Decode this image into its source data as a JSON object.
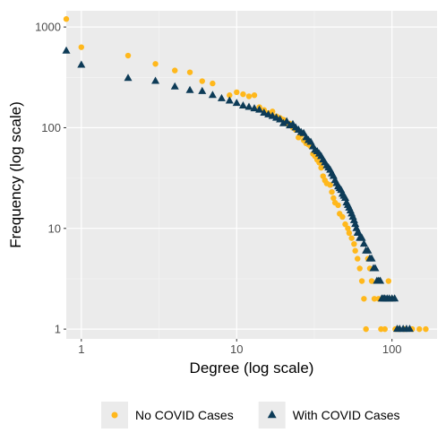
{
  "chart_data": {
    "type": "scatter",
    "xscale": "log",
    "yscale": "log",
    "xlim": [
      0.8,
      195
    ],
    "ylim": [
      0.8,
      1450
    ],
    "xlabel": "Degree (log scale)",
    "ylabel": "Frequency (log scale)",
    "xticks": [
      {
        "value": 1,
        "label": "1"
      },
      {
        "value": 10,
        "label": "10"
      },
      {
        "value": 100,
        "label": "100"
      }
    ],
    "yticks": [
      {
        "value": 1,
        "label": "1"
      },
      {
        "value": 10,
        "label": "10"
      },
      {
        "value": 100,
        "label": "100"
      },
      {
        "value": 1000,
        "label": "1000"
      }
    ],
    "grid": true,
    "background": "#ebebeb",
    "legend_position": "bottom",
    "series": [
      {
        "name": "No COVID Cases",
        "marker": "circle",
        "color": "#ffb81c",
        "points": [
          [
            0.8,
            1200
          ],
          [
            1,
            630
          ],
          [
            2,
            520
          ],
          [
            3,
            430
          ],
          [
            4,
            370
          ],
          [
            5,
            355
          ],
          [
            6,
            290
          ],
          [
            7,
            275
          ],
          [
            9,
            210
          ],
          [
            10,
            225
          ],
          [
            11,
            215
          ],
          [
            12,
            205
          ],
          [
            13,
            210
          ],
          [
            14,
            160
          ],
          [
            15,
            150
          ],
          [
            16,
            140
          ],
          [
            17,
            145
          ],
          [
            18,
            130
          ],
          [
            19,
            125
          ],
          [
            20,
            120
          ],
          [
            21,
            110
          ],
          [
            22,
            110
          ],
          [
            23,
            100
          ],
          [
            24,
            95
          ],
          [
            25,
            80
          ],
          [
            26,
            85
          ],
          [
            27,
            75
          ],
          [
            28,
            70
          ],
          [
            29,
            68
          ],
          [
            30,
            65
          ],
          [
            31,
            55
          ],
          [
            32,
            52
          ],
          [
            33,
            48
          ],
          [
            34,
            45
          ],
          [
            35,
            40
          ],
          [
            36,
            33
          ],
          [
            37,
            30
          ],
          [
            38,
            28
          ],
          [
            40,
            27
          ],
          [
            41,
            23
          ],
          [
            42,
            20
          ],
          [
            43,
            18
          ],
          [
            45,
            17
          ],
          [
            46,
            14
          ],
          [
            48,
            13
          ],
          [
            50,
            11
          ],
          [
            52,
            10
          ],
          [
            53,
            9
          ],
          [
            55,
            8
          ],
          [
            57,
            7
          ],
          [
            58,
            6
          ],
          [
            60,
            5
          ],
          [
            62,
            4
          ],
          [
            64,
            3
          ],
          [
            66,
            2
          ],
          [
            68,
            1
          ],
          [
            70,
            5
          ],
          [
            72,
            4
          ],
          [
            74,
            3
          ],
          [
            77,
            2
          ],
          [
            82,
            2
          ],
          [
            85,
            1
          ],
          [
            90,
            1
          ],
          [
            95,
            3
          ],
          [
            100,
            2
          ],
          [
            105,
            1
          ],
          [
            110,
            1
          ],
          [
            120,
            1
          ],
          [
            135,
            1
          ],
          [
            150,
            1
          ],
          [
            165,
            1
          ]
        ]
      },
      {
        "name": "With COVID Cases",
        "marker": "triangle",
        "color": "#0d3b57",
        "points": [
          [
            0.8,
            580
          ],
          [
            1,
            420
          ],
          [
            2,
            310
          ],
          [
            3,
            290
          ],
          [
            4,
            255
          ],
          [
            5,
            235
          ],
          [
            6,
            230
          ],
          [
            7,
            210
          ],
          [
            8,
            195
          ],
          [
            9,
            185
          ],
          [
            10,
            175
          ],
          [
            11,
            165
          ],
          [
            12,
            160
          ],
          [
            13,
            155
          ],
          [
            14,
            150
          ],
          [
            15,
            140
          ],
          [
            16,
            135
          ],
          [
            17,
            130
          ],
          [
            18,
            125
          ],
          [
            19,
            120
          ],
          [
            20,
            110
          ],
          [
            21,
            115
          ],
          [
            22,
            105
          ],
          [
            23,
            108
          ],
          [
            24,
            100
          ],
          [
            25,
            95
          ],
          [
            26,
            90
          ],
          [
            27,
            88
          ],
          [
            28,
            80
          ],
          [
            29,
            75
          ],
          [
            30,
            72
          ],
          [
            31,
            65
          ],
          [
            32,
            60
          ],
          [
            33,
            58
          ],
          [
            34,
            55
          ],
          [
            35,
            52
          ],
          [
            36,
            48
          ],
          [
            37,
            45
          ],
          [
            38,
            42
          ],
          [
            39,
            40
          ],
          [
            40,
            38
          ],
          [
            41,
            35
          ],
          [
            42,
            33
          ],
          [
            43,
            30
          ],
          [
            44,
            28
          ],
          [
            45,
            26
          ],
          [
            46,
            25
          ],
          [
            47,
            24
          ],
          [
            48,
            22
          ],
          [
            49,
            21
          ],
          [
            50,
            20
          ],
          [
            51,
            18
          ],
          [
            52,
            17
          ],
          [
            53,
            16
          ],
          [
            54,
            15
          ],
          [
            55,
            14
          ],
          [
            56,
            13
          ],
          [
            57,
            12
          ],
          [
            58,
            11
          ],
          [
            59,
            10
          ],
          [
            60,
            9
          ],
          [
            61,
            9
          ],
          [
            62,
            8
          ],
          [
            64,
            8
          ],
          [
            66,
            7
          ],
          [
            68,
            6
          ],
          [
            70,
            6
          ],
          [
            72,
            5
          ],
          [
            74,
            5
          ],
          [
            76,
            4
          ],
          [
            78,
            4
          ],
          [
            80,
            3
          ],
          [
            82,
            3
          ],
          [
            84,
            3
          ],
          [
            86,
            2
          ],
          [
            88,
            2
          ],
          [
            90,
            2
          ],
          [
            93,
            2
          ],
          [
            96,
            2
          ],
          [
            100,
            2
          ],
          [
            104,
            2
          ],
          [
            108,
            1
          ],
          [
            112,
            1
          ],
          [
            118,
            1
          ],
          [
            124,
            1
          ],
          [
            130,
            1
          ]
        ]
      }
    ]
  }
}
